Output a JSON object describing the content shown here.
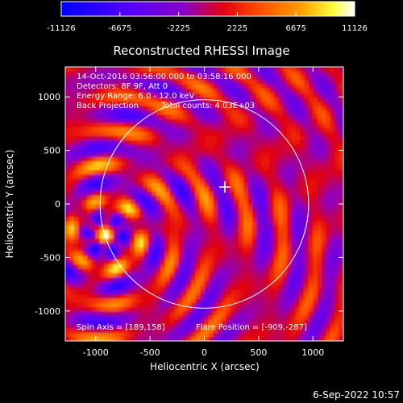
{
  "chart_data": {
    "type": "heatmap",
    "title": "Reconstructed RHESSI Image",
    "xlabel": "Heliocentric X (arcsec)",
    "ylabel": "Heliocentric Y (arcsec)",
    "xlim": [
      -1280,
      1280
    ],
    "ylim": [
      -1280,
      1280
    ],
    "x_ticks": [
      -1000,
      -500,
      0,
      500,
      1000
    ],
    "y_ticks": [
      -1000,
      -500,
      0,
      500,
      1000
    ],
    "colorbar": {
      "min": -11126,
      "max": 11126,
      "ticks": [
        {
          "value": -11126,
          "label": "-11126"
        },
        {
          "value": -6675,
          "label": "-6675"
        },
        {
          "value": -2225,
          "label": "-2225"
        },
        {
          "value": 2225,
          "label": "2225"
        },
        {
          "value": 6675,
          "label": "6675"
        },
        {
          "value": 11126,
          "label": "11126"
        }
      ],
      "colors": [
        "#0000ff",
        "#8a00e0",
        "#ff0000",
        "#ff8000",
        "#ffff00",
        "#ffffff"
      ]
    },
    "annotations": [
      "14-Oct-2016 03:56:00.000 to 03:58:16.000",
      "Detectors: 8F 9F, Att 0",
      "Energy Range: 6.0 - 12.0 keV",
      "Back Projection",
      "Total counts: 4.03E+03"
    ],
    "spin_axis_label": "Spin Axis = [189,158]",
    "flare_position_label": "Flare Position = [-909,-287]",
    "flare_position": [
      -909,
      -287
    ],
    "spin_axis": [
      189,
      158
    ],
    "solar_limb_radius_arcsec": 960,
    "grid": false
  },
  "footer": {
    "date": "6-Sep-2022 10:57"
  }
}
